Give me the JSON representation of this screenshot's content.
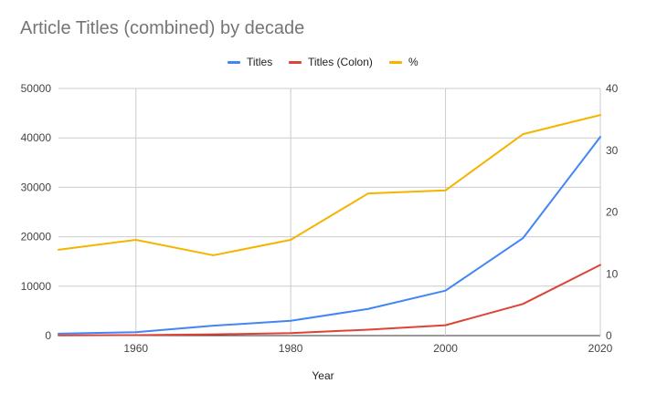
{
  "chart_data": {
    "type": "line",
    "title": "Article Titles (combined) by decade",
    "xlabel": "Year",
    "ylabel": "",
    "y2label": "",
    "x": [
      1950,
      1960,
      1970,
      1980,
      1990,
      2000,
      2010,
      2020
    ],
    "xlim": [
      1950,
      2020
    ],
    "xticks": [
      1960,
      1980,
      2000,
      2020
    ],
    "ylim": [
      0,
      50000
    ],
    "yticks": [
      0,
      10000,
      20000,
      30000,
      40000,
      50000
    ],
    "y2lim": [
      0,
      40
    ],
    "y2ticks": [
      0,
      10,
      20,
      30,
      40
    ],
    "legend_position": "top",
    "grid": true,
    "series": [
      {
        "name": "Titles",
        "axis": "left",
        "color": "#4285f4",
        "values": [
          400,
          700,
          2000,
          3000,
          5400,
          9100,
          19700,
          40200
        ]
      },
      {
        "name": "Titles (Colon)",
        "axis": "left",
        "color": "#db4437",
        "values": [
          50,
          100,
          250,
          500,
          1200,
          2100,
          6400,
          14300
        ]
      },
      {
        "name": "%",
        "axis": "right",
        "color": "#f4b400",
        "values": [
          13.9,
          15.5,
          13.0,
          15.5,
          23.0,
          23.5,
          32.6,
          35.7
        ]
      }
    ]
  }
}
